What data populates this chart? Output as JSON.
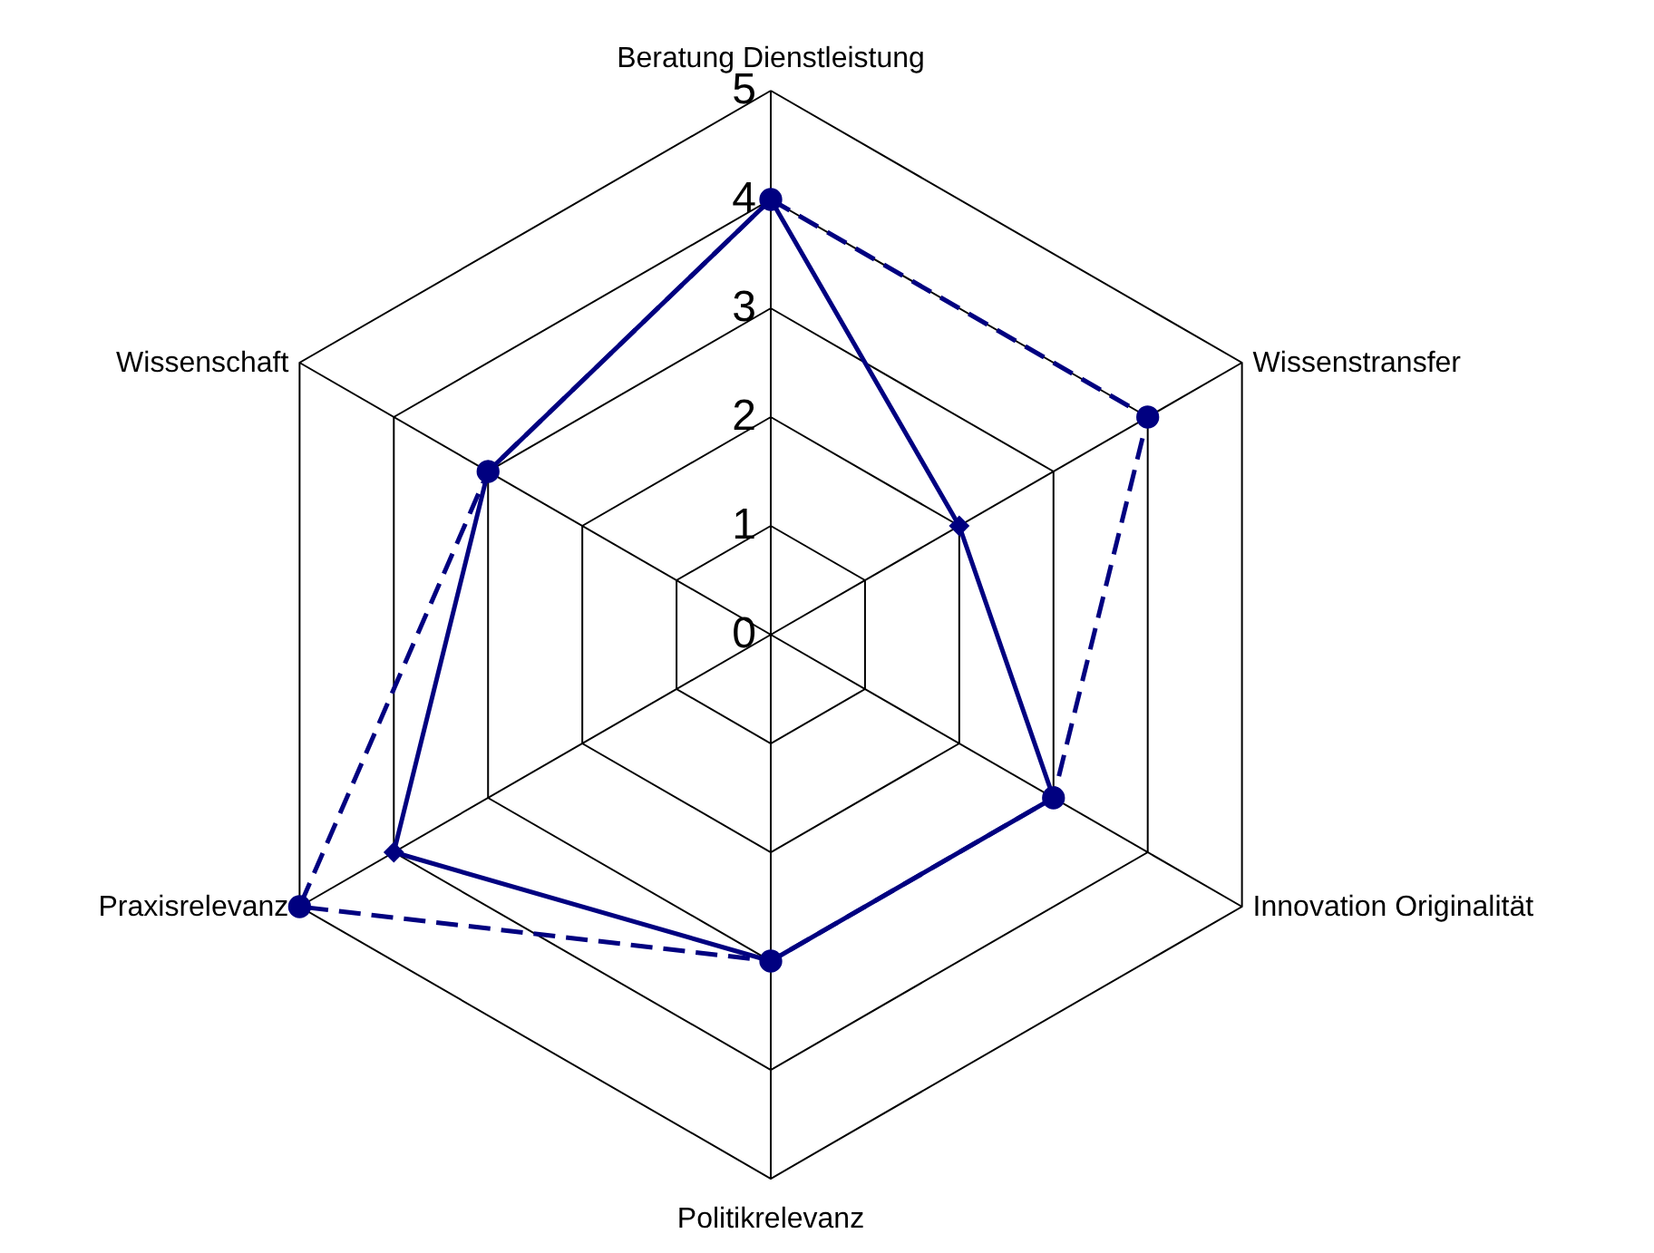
{
  "chart_data": {
    "type": "radar",
    "categories": [
      "Beratung Dienstleistung",
      "Wissenstransfer",
      "Innovation Originalität",
      "Politikrelevanz",
      "Praxisrelevanz",
      "Wissenschaft"
    ],
    "series": [
      {
        "color": "#000080",
        "values": [
          4,
          2,
          3,
          3,
          4,
          3
        ],
        "marker": "diamond",
        "line_style": "solid"
      },
      {
        "color": "#000080",
        "values": [
          4,
          4,
          3,
          3,
          5,
          3
        ],
        "marker": "circle",
        "line_style": "dashed"
      }
    ],
    "ylim": [
      0,
      5
    ],
    "yticks": [
      0,
      1,
      2,
      3,
      4,
      5
    ],
    "grid": true
  }
}
